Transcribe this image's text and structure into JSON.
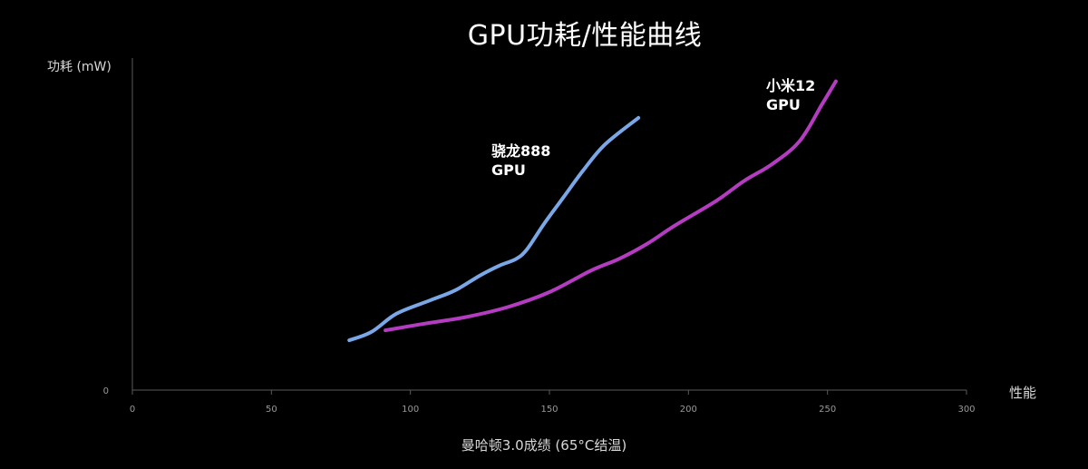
{
  "chart_data": {
    "type": "line",
    "title": "GPU功耗/性能曲线",
    "xlabel": "性能",
    "xaxis_title": "曼哈顿3.0成绩 (65°C结温)",
    "ylabel": "功耗 (mW)",
    "xlim": [
      0,
      300
    ],
    "ylim": [
      0,
      100
    ],
    "xticks": [
      "0",
      "50",
      "100",
      "150",
      "200",
      "250",
      "300"
    ],
    "yticks": [
      "0"
    ],
    "grid": false,
    "series": [
      {
        "name": "骁龙888\nGPU",
        "color": "#7aa7e6",
        "x": [
          78,
          86,
          95,
          107,
          116,
          125,
          132,
          138,
          142,
          148,
          155,
          162,
          170,
          182
        ],
        "y": [
          15,
          17.5,
          23,
          27,
          30,
          34.5,
          37.5,
          39.5,
          42.5,
          50,
          58,
          66,
          74,
          82
        ]
      },
      {
        "name": "小米12\nGPU",
        "color": "#b43cc0",
        "x": [
          91,
          105,
          120,
          135,
          150,
          165,
          175,
          185,
          195,
          210,
          220,
          230,
          240,
          248,
          253
        ],
        "y": [
          18,
          20,
          22,
          25,
          29.5,
          36,
          39.5,
          44,
          49.5,
          57,
          63,
          68,
          75,
          86,
          93
        ]
      }
    ]
  }
}
